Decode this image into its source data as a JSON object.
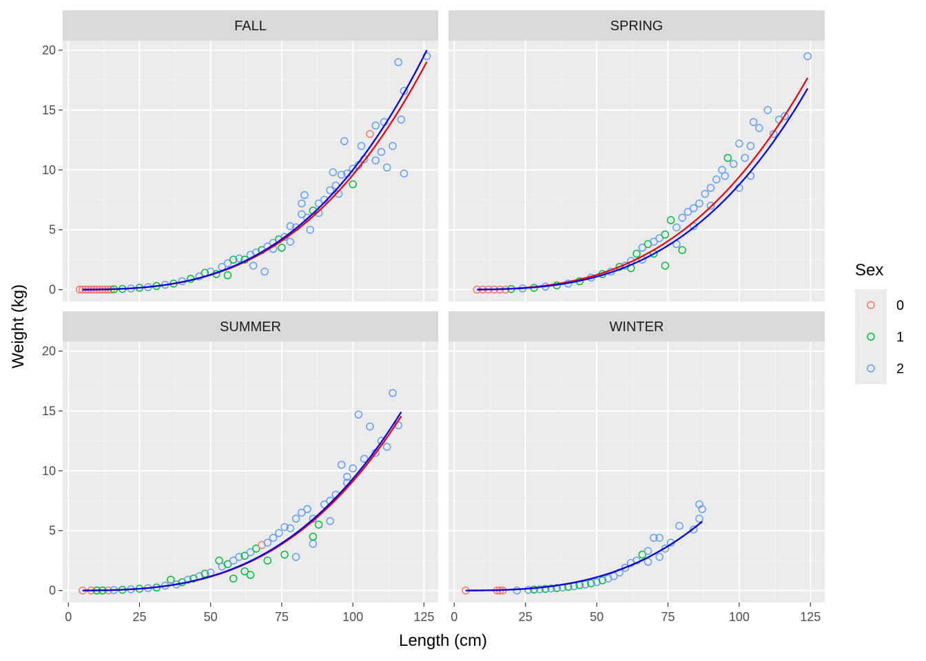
{
  "chart_data": {
    "type": "scatter",
    "xlabel": "Length (cm)",
    "ylabel": "Weight (kg)",
    "xlim": [
      -2,
      130
    ],
    "ylim": [
      -1,
      20.8
    ],
    "x_ticks": [
      0,
      25,
      50,
      75,
      100,
      125
    ],
    "y_ticks": [
      0,
      5,
      10,
      15,
      20
    ],
    "grid": true,
    "legend": {
      "title": "Sex",
      "placement": "right",
      "entries": [
        {
          "label": "0",
          "color": "#F8766D"
        },
        {
          "label": "1",
          "color": "#00BA38"
        },
        {
          "label": "2",
          "color": "#619CFF"
        }
      ]
    },
    "fit_colors": {
      "red": "#E8000B",
      "blue": "#0000E0"
    },
    "panels": [
      {
        "strip": "FALL",
        "x_range": [
          5,
          126
        ],
        "fit_red": {
          "a": 1.1e-05,
          "b": 2.97
        },
        "fit_blue": {
          "a": 1e-05,
          "b": 3.0
        },
        "points": [
          [
            4,
            0,
            0
          ],
          [
            5,
            0,
            0
          ],
          [
            6,
            0,
            0
          ],
          [
            7,
            0,
            0
          ],
          [
            8,
            0,
            0
          ],
          [
            9,
            0,
            0
          ],
          [
            10,
            0,
            0
          ],
          [
            11,
            0,
            0
          ],
          [
            12,
            0,
            0
          ],
          [
            13,
            0,
            0
          ],
          [
            14,
            0,
            0
          ],
          [
            15,
            0,
            0
          ],
          [
            16,
            0.03,
            1
          ],
          [
            19,
            0.06,
            1
          ],
          [
            22,
            0.09,
            2
          ],
          [
            25,
            0.15,
            1
          ],
          [
            28,
            0.2,
            2
          ],
          [
            31,
            0.3,
            1
          ],
          [
            34,
            0.4,
            2
          ],
          [
            37,
            0.5,
            1
          ],
          [
            40,
            0.7,
            2
          ],
          [
            43,
            0.9,
            1
          ],
          [
            46,
            1.1,
            2
          ],
          [
            48,
            1.4,
            1
          ],
          [
            50,
            1.5,
            2
          ],
          [
            52,
            1.3,
            1
          ],
          [
            54,
            1.9,
            2
          ],
          [
            56,
            2.2,
            2
          ],
          [
            58,
            2.5,
            1
          ],
          [
            60,
            2.6,
            2
          ],
          [
            62,
            2.5,
            1
          ],
          [
            64,
            2.9,
            2
          ],
          [
            66,
            3.1,
            2
          ],
          [
            68,
            3.3,
            1
          ],
          [
            70,
            3.6,
            2
          ],
          [
            72,
            3.9,
            2
          ],
          [
            74,
            4.2,
            1
          ],
          [
            76,
            4.4,
            2
          ],
          [
            78,
            5.3,
            2
          ],
          [
            80,
            5.2,
            2
          ],
          [
            82,
            6.3,
            2
          ],
          [
            84,
            6.0,
            2
          ],
          [
            86,
            6.6,
            1
          ],
          [
            88,
            7.2,
            2
          ],
          [
            90,
            7.5,
            2
          ],
          [
            92,
            8.3,
            2
          ],
          [
            94,
            8.7,
            2
          ],
          [
            96,
            9.6,
            2
          ],
          [
            98,
            9.7,
            2
          ],
          [
            100,
            10.1,
            2
          ],
          [
            102,
            10.4,
            2
          ],
          [
            104,
            10.9,
            2
          ],
          [
            106,
            13.0,
            0
          ],
          [
            108,
            13.7,
            2
          ],
          [
            110,
            11.5,
            2
          ],
          [
            112,
            10.2,
            2
          ],
          [
            114,
            12.0,
            2
          ],
          [
            116,
            19.0,
            2
          ],
          [
            118,
            16.6,
            2
          ],
          [
            118,
            9.7,
            2
          ],
          [
            126,
            19.5,
            2
          ],
          [
            82,
            7.2,
            2
          ],
          [
            88,
            6.4,
            2
          ],
          [
            93,
            9.8,
            2
          ],
          [
            97,
            12.4,
            2
          ],
          [
            103,
            12.0,
            2
          ],
          [
            111,
            14.0,
            2
          ],
          [
            117,
            14.2,
            2
          ],
          [
            108,
            10.8,
            2
          ],
          [
            100,
            8.8,
            1
          ],
          [
            95,
            8.0,
            2
          ],
          [
            85,
            5.0,
            2
          ],
          [
            78,
            4.0,
            2
          ],
          [
            72,
            3.4,
            2
          ],
          [
            83,
            7.9,
            2
          ],
          [
            65,
            2.0,
            2
          ],
          [
            69,
            1.5,
            2
          ],
          [
            56,
            1.2,
            1
          ],
          [
            75,
            3.5,
            1
          ]
        ]
      },
      {
        "strip": "SPRING",
        "x_range": [
          8,
          124
        ],
        "fit_red": {
          "a": 1.3e-05,
          "b": 2.93
        },
        "fit_blue": {
          "a": 8e-06,
          "b": 3.02
        },
        "points": [
          [
            8,
            0,
            0
          ],
          [
            10,
            0,
            0
          ],
          [
            12,
            0,
            0
          ],
          [
            14,
            0,
            0
          ],
          [
            16,
            0,
            0
          ],
          [
            18,
            0,
            0
          ],
          [
            20,
            0.05,
            1
          ],
          [
            24,
            0.1,
            2
          ],
          [
            28,
            0.15,
            1
          ],
          [
            32,
            0.25,
            2
          ],
          [
            36,
            0.35,
            1
          ],
          [
            40,
            0.5,
            2
          ],
          [
            44,
            0.7,
            1
          ],
          [
            48,
            1.0,
            2
          ],
          [
            52,
            1.3,
            1
          ],
          [
            55,
            1.5,
            2
          ],
          [
            58,
            1.9,
            1
          ],
          [
            60,
            2.0,
            2
          ],
          [
            62,
            2.4,
            2
          ],
          [
            64,
            3.0,
            1
          ],
          [
            66,
            3.5,
            2
          ],
          [
            68,
            3.8,
            1
          ],
          [
            70,
            4.0,
            2
          ],
          [
            72,
            4.3,
            2
          ],
          [
            74,
            4.6,
            1
          ],
          [
            76,
            5.8,
            1
          ],
          [
            78,
            5.2,
            2
          ],
          [
            80,
            6.0,
            2
          ],
          [
            82,
            6.5,
            2
          ],
          [
            84,
            6.8,
            2
          ],
          [
            86,
            7.2,
            2
          ],
          [
            88,
            8.0,
            2
          ],
          [
            90,
            8.5,
            2
          ],
          [
            92,
            9.2,
            2
          ],
          [
            94,
            10.0,
            2
          ],
          [
            96,
            11.0,
            1
          ],
          [
            98,
            10.5,
            2
          ],
          [
            100,
            12.2,
            2
          ],
          [
            102,
            11.0,
            2
          ],
          [
            104,
            12.0,
            2
          ],
          [
            105,
            14.0,
            2
          ],
          [
            107,
            13.5,
            2
          ],
          [
            110,
            15.0,
            2
          ],
          [
            112,
            13.0,
            2
          ],
          [
            114,
            14.2,
            2
          ],
          [
            116,
            14.5,
            2
          ],
          [
            124,
            19.5,
            2
          ],
          [
            70,
            3.0,
            1
          ],
          [
            74,
            2.0,
            1
          ],
          [
            78,
            3.8,
            2
          ],
          [
            84,
            5.3,
            2
          ],
          [
            90,
            7.0,
            2
          ],
          [
            95,
            9.5,
            2
          ],
          [
            100,
            8.5,
            2
          ],
          [
            104,
            9.5,
            2
          ],
          [
            66,
            2.5,
            2
          ],
          [
            62,
            1.8,
            1
          ],
          [
            80,
            3.3,
            1
          ]
        ]
      },
      {
        "strip": "SUMMER",
        "x_range": [
          5,
          117
        ],
        "fit_red": {
          "a": 1e-05,
          "b": 2.98
        },
        "fit_blue": {
          "a": 1e-05,
          "b": 2.985
        },
        "points": [
          [
            5,
            0,
            0
          ],
          [
            8,
            0,
            0
          ],
          [
            10,
            0,
            0
          ],
          [
            12,
            0,
            0
          ],
          [
            14,
            0,
            0
          ],
          [
            10,
            0,
            1
          ],
          [
            12,
            0,
            1
          ],
          [
            16,
            0.03,
            2
          ],
          [
            19,
            0.06,
            1
          ],
          [
            22,
            0.1,
            2
          ],
          [
            25,
            0.15,
            1
          ],
          [
            28,
            0.2,
            2
          ],
          [
            31,
            0.25,
            1
          ],
          [
            34,
            0.4,
            2
          ],
          [
            36,
            0.9,
            1
          ],
          [
            38,
            0.5,
            2
          ],
          [
            40,
            0.7,
            1
          ],
          [
            42,
            0.9,
            2
          ],
          [
            44,
            1.0,
            1
          ],
          [
            46,
            1.2,
            2
          ],
          [
            48,
            1.4,
            1
          ],
          [
            50,
            1.5,
            2
          ],
          [
            53,
            2.5,
            1
          ],
          [
            54,
            2.0,
            2
          ],
          [
            56,
            2.2,
            1
          ],
          [
            58,
            2.5,
            2
          ],
          [
            60,
            2.8,
            2
          ],
          [
            62,
            2.9,
            1
          ],
          [
            64,
            3.2,
            2
          ],
          [
            66,
            3.5,
            1
          ],
          [
            68,
            3.8,
            0
          ],
          [
            70,
            4.0,
            2
          ],
          [
            72,
            4.4,
            2
          ],
          [
            74,
            4.8,
            2
          ],
          [
            76,
            5.3,
            2
          ],
          [
            78,
            5.2,
            2
          ],
          [
            80,
            6.0,
            2
          ],
          [
            82,
            6.5,
            2
          ],
          [
            84,
            6.8,
            2
          ],
          [
            86,
            6.0,
            2
          ],
          [
            88,
            5.5,
            1
          ],
          [
            90,
            7.2,
            2
          ],
          [
            92,
            7.5,
            2
          ],
          [
            94,
            8.0,
            2
          ],
          [
            96,
            10.5,
            2
          ],
          [
            98,
            9.5,
            2
          ],
          [
            100,
            10.2,
            2
          ],
          [
            102,
            14.7,
            2
          ],
          [
            104,
            11.0,
            2
          ],
          [
            106,
            13.7,
            2
          ],
          [
            108,
            11.5,
            2
          ],
          [
            110,
            12.5,
            2
          ],
          [
            112,
            12.0,
            2
          ],
          [
            114,
            16.5,
            2
          ],
          [
            116,
            13.8,
            2
          ],
          [
            58,
            1.0,
            1
          ],
          [
            62,
            1.6,
            1
          ],
          [
            70,
            2.5,
            1
          ],
          [
            76,
            3.0,
            1
          ],
          [
            80,
            2.8,
            2
          ],
          [
            86,
            3.9,
            2
          ],
          [
            92,
            5.8,
            2
          ],
          [
            98,
            9.0,
            2
          ],
          [
            86,
            4.5,
            1
          ],
          [
            64,
            1.3,
            1
          ]
        ]
      },
      {
        "strip": "WINTER",
        "x_range": [
          4,
          87
        ],
        "fit_red": {
          "a": 1e-05,
          "b": 2.97
        },
        "fit_blue": {
          "a": 1e-05,
          "b": 2.97
        },
        "points": [
          [
            4,
            0,
            0
          ],
          [
            15,
            0,
            0
          ],
          [
            16,
            0,
            0
          ],
          [
            17,
            0,
            0
          ],
          [
            22,
            0,
            2
          ],
          [
            26,
            0.05,
            2
          ],
          [
            28,
            0.08,
            1
          ],
          [
            30,
            0.1,
            2
          ],
          [
            32,
            0.13,
            1
          ],
          [
            34,
            0.17,
            2
          ],
          [
            36,
            0.2,
            1
          ],
          [
            38,
            0.25,
            2
          ],
          [
            40,
            0.3,
            1
          ],
          [
            42,
            0.35,
            2
          ],
          [
            44,
            0.45,
            1
          ],
          [
            46,
            0.5,
            2
          ],
          [
            48,
            0.6,
            1
          ],
          [
            50,
            0.7,
            2
          ],
          [
            52,
            0.85,
            1
          ],
          [
            54,
            1.0,
            2
          ],
          [
            56,
            1.2,
            2
          ],
          [
            58,
            1.5,
            2
          ],
          [
            60,
            1.9,
            2
          ],
          [
            62,
            2.3,
            2
          ],
          [
            64,
            2.5,
            2
          ],
          [
            66,
            3.0,
            1
          ],
          [
            68,
            3.3,
            2
          ],
          [
            70,
            4.4,
            2
          ],
          [
            72,
            4.4,
            2
          ],
          [
            74,
            3.5,
            2
          ],
          [
            76,
            4.0,
            2
          ],
          [
            79,
            5.4,
            2
          ],
          [
            84,
            5.1,
            2
          ],
          [
            86,
            6.0,
            2
          ],
          [
            86,
            7.2,
            2
          ],
          [
            87,
            6.8,
            2
          ],
          [
            68,
            2.4,
            2
          ],
          [
            72,
            2.8,
            2
          ]
        ]
      }
    ]
  }
}
